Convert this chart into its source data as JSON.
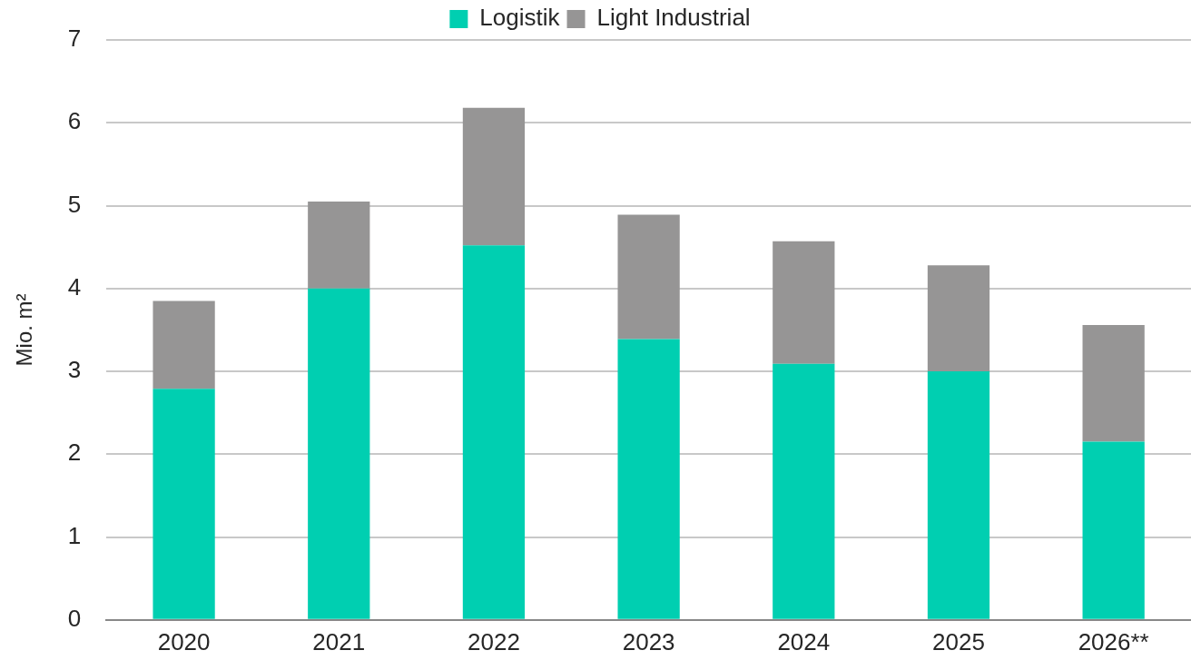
{
  "chart_data": {
    "type": "bar",
    "stacked": true,
    "ylabel": "Mio. m²",
    "categories": [
      "2020",
      "2021",
      "2022",
      "2023",
      "2024",
      "2025",
      "2026**"
    ],
    "series": [
      {
        "name": "Logistik",
        "color": "#00cfb1",
        "values": [
          2.79,
          4.0,
          4.52,
          3.39,
          3.09,
          3.0,
          2.15
        ]
      },
      {
        "name": "Light Industrial",
        "color": "#969595",
        "values": [
          1.06,
          1.05,
          1.66,
          1.5,
          1.48,
          1.28,
          1.41
        ]
      }
    ],
    "ylim": [
      0,
      7
    ],
    "yticks": [
      0,
      1,
      2,
      3,
      4,
      5,
      6,
      7
    ],
    "grid": "y",
    "legend": "top"
  }
}
